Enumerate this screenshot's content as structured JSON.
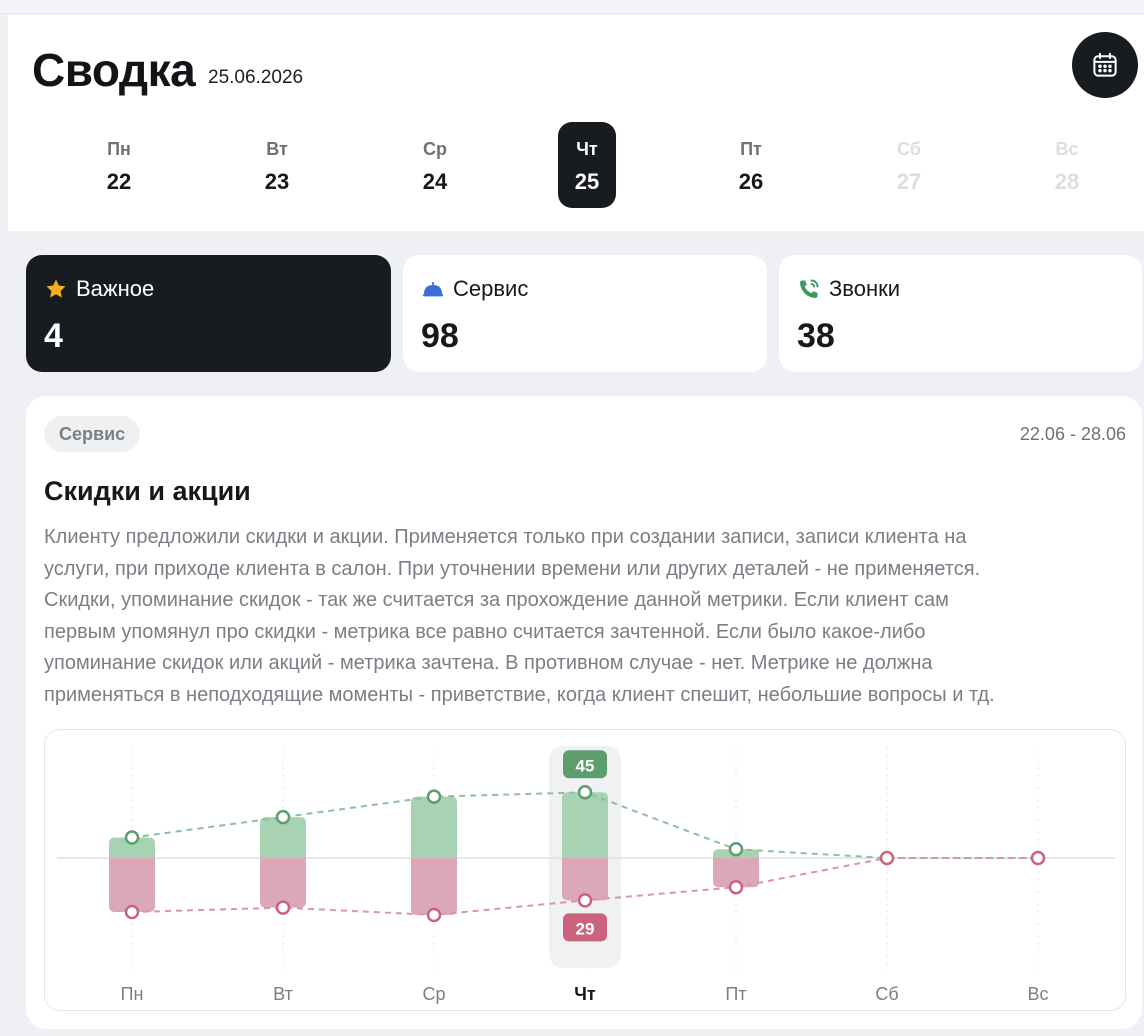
{
  "header": {
    "title": "Сводка",
    "date": "25.06.2026",
    "calendar_icon": "calendar-icon"
  },
  "week": [
    {
      "name": "Пн",
      "date": "22",
      "state": "normal"
    },
    {
      "name": "Вт",
      "date": "23",
      "state": "normal"
    },
    {
      "name": "Ср",
      "date": "24",
      "state": "normal"
    },
    {
      "name": "Чт",
      "date": "25",
      "state": "active"
    },
    {
      "name": "Пт",
      "date": "26",
      "state": "normal"
    },
    {
      "name": "Сб",
      "date": "27",
      "state": "disabled"
    },
    {
      "name": "Вс",
      "date": "28",
      "state": "disabled"
    }
  ],
  "cards": [
    {
      "label": "Важное",
      "value": "4",
      "icon": "star-icon",
      "icon_color": "#f2b01e",
      "selected": true
    },
    {
      "label": "Сервис",
      "value": "98",
      "icon": "service-bell-icon",
      "icon_color": "#3b6fd6",
      "selected": false
    },
    {
      "label": "Звонки",
      "value": "38",
      "icon": "phone-icon",
      "icon_color": "#3e9a5a",
      "selected": false
    }
  ],
  "metric": {
    "tag": "Сервис",
    "range": "22.06 - 28.06",
    "title": "Скидки и акции",
    "description_lines": [
      "Клиенту предложили скидки и акции. Применяется только при создании записи, записи клиента на",
      "услуги, при приходе клиента в салон. При уточнении времени или других деталей - не применяется.",
      "Скидки, упоминание скидок - так же считается за прохождение данной метрики. Если клиент сам",
      "первым упомянул про скидки - метрика все равно считается зачтенной. Если было какое-либо",
      "упоминание скидок или акций - метрика зачтена. В противном случае - нет. Метрике не должна",
      "применяться в неподходящие моменты - приветствие, когда клиент спешит, небольшие вопросы и тд."
    ]
  },
  "chart_data": {
    "type": "bar",
    "categories": [
      "Пн",
      "Вт",
      "Ср",
      "Чт",
      "Пт",
      "Сб",
      "Вс"
    ],
    "selected_category": "Чт",
    "series": [
      {
        "values": [
          14,
          28,
          42,
          45,
          6,
          0,
          0
        ],
        "color": "#5c9e6e",
        "direction": "up"
      },
      {
        "values": [
          37,
          34,
          39,
          29,
          20,
          0,
          0
        ],
        "color": "#c9637e",
        "direction": "down"
      }
    ],
    "labels_shown_for": "Чт",
    "grid": true
  }
}
